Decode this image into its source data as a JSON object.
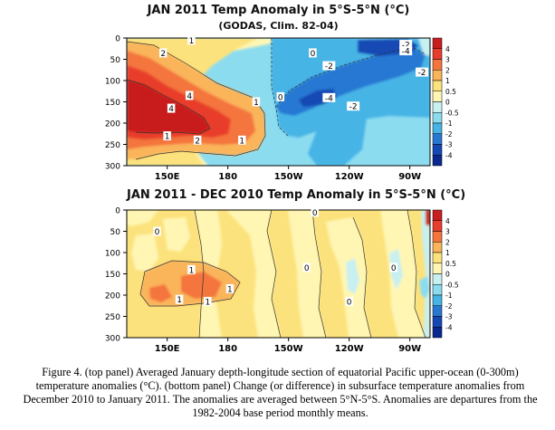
{
  "chart_data": [
    {
      "type": "heatmap",
      "title": "JAN 2011 Temp Anomaly in 5°S-5°N (°C)",
      "subtitle": "(GODAS, Clim. 82-04)",
      "xlabel": "",
      "ylabel": "",
      "x_ticks": [
        "150E",
        "180",
        "150W",
        "120W",
        "90W"
      ],
      "x_tick_values": [
        150,
        180,
        210,
        240,
        270
      ],
      "xlim": [
        130,
        280
      ],
      "y_ticks": [
        "0",
        "50",
        "100",
        "150",
        "200",
        "250",
        "300"
      ],
      "y_tick_values": [
        0,
        50,
        100,
        150,
        200,
        250,
        300
      ],
      "ylim": [
        300,
        0
      ],
      "contour_labels": [
        {
          "text": "1",
          "lon": 162,
          "depth": 5
        },
        {
          "text": "2",
          "lon": 148,
          "depth": 35
        },
        {
          "text": "0",
          "lon": 222,
          "depth": 35
        },
        {
          "text": "-2",
          "lon": 268,
          "depth": 15
        },
        {
          "text": "-4",
          "lon": 268,
          "depth": 30
        },
        {
          "text": "-2",
          "lon": 230,
          "depth": 65
        },
        {
          "text": "-2",
          "lon": 276,
          "depth": 80
        },
        {
          "text": "4",
          "lon": 161,
          "depth": 135
        },
        {
          "text": "4",
          "lon": 152,
          "depth": 165
        },
        {
          "text": "0",
          "lon": 206,
          "depth": 138
        },
        {
          "text": "1",
          "lon": 194,
          "depth": 150
        },
        {
          "text": "-4",
          "lon": 230,
          "depth": 140
        },
        {
          "text": "-2",
          "lon": 242,
          "depth": 160
        },
        {
          "text": "1",
          "lon": 150,
          "depth": 230
        },
        {
          "text": "2",
          "lon": 165,
          "depth": 240
        },
        {
          "text": "1",
          "lon": 187,
          "depth": 240
        }
      ]
    },
    {
      "type": "heatmap",
      "title": "JAN 2011 - DEC 2010 Temp Anomaly in 5°S-5°N (°C)",
      "xlabel": "",
      "ylabel": "",
      "x_ticks": [
        "150E",
        "180",
        "150W",
        "120W",
        "90W"
      ],
      "x_tick_values": [
        150,
        180,
        210,
        240,
        270
      ],
      "xlim": [
        130,
        280
      ],
      "y_ticks": [
        "0",
        "50",
        "100",
        "150",
        "200",
        "250",
        "300"
      ],
      "y_tick_values": [
        0,
        50,
        100,
        150,
        200,
        250,
        300
      ],
      "ylim": [
        300,
        0
      ],
      "contour_labels": [
        {
          "text": "0",
          "lon": 223,
          "depth": 5
        },
        {
          "text": "0",
          "lon": 145,
          "depth": 50
        },
        {
          "text": "0",
          "lon": 262,
          "depth": 135
        },
        {
          "text": "0",
          "lon": 219,
          "depth": 135
        },
        {
          "text": "1",
          "lon": 162,
          "depth": 140
        },
        {
          "text": "1",
          "lon": 181,
          "depth": 185
        },
        {
          "text": "1",
          "lon": 156,
          "depth": 210
        },
        {
          "text": "1",
          "lon": 170,
          "depth": 215
        },
        {
          "text": "0",
          "lon": 240,
          "depth": 215
        }
      ]
    }
  ],
  "colorbar": {
    "labels": [
      "4",
      "3",
      "2",
      "1",
      "0.5",
      "0",
      "-0.5",
      "-1",
      "-2",
      "-3",
      "-4"
    ],
    "colors": [
      "#c81e1e",
      "#e83c2c",
      "#f4743c",
      "#fab45a",
      "#fce27c",
      "#fff6b4",
      "#c8f0f0",
      "#8cdcf0",
      "#46b4e6",
      "#2878d2",
      "#1448b4",
      "#0a2890"
    ]
  },
  "caption": "Figure 4. (top panel) Averaged January depth-longitude section of equatorial Pacific upper-ocean (0-300m) temperature anomalies (°C). (bottom panel) Change (or difference) in subsurface temperature anomalies from December 2010 to January 2011.  The anomalies are averaged between 5°N-5°S.  Anomalies are departures from the 1982-2004 base period monthly means."
}
